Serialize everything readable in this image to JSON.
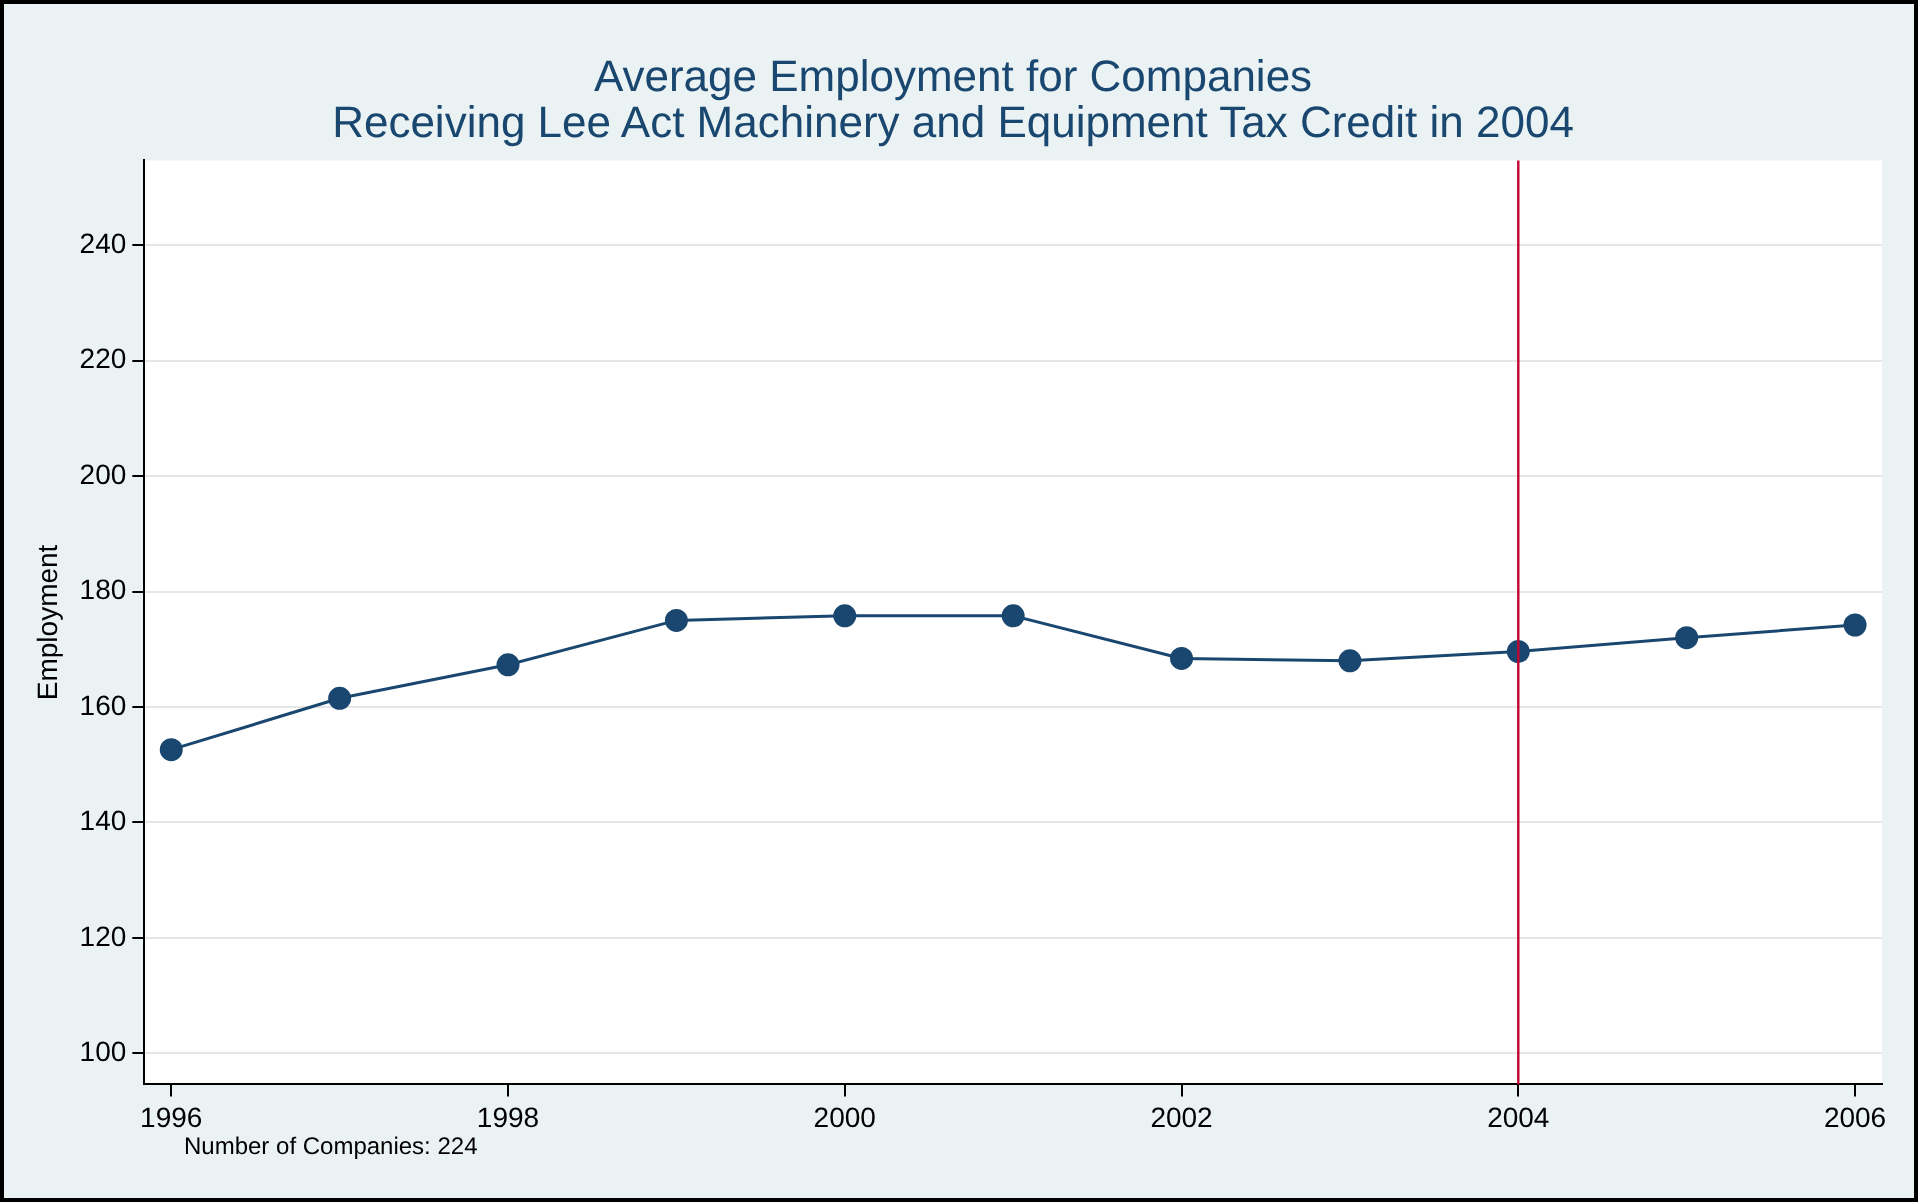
{
  "chart_data": {
    "type": "line",
    "title": "Average Employment for Companies\nReceiving Lee Act Machinery and Equipment Tax Credit in 2004",
    "ylabel": "Employment",
    "x": [
      1996,
      1997,
      1998,
      1999,
      2000,
      2001,
      2002,
      2003,
      2004,
      2005,
      2006
    ],
    "series": [
      {
        "color": "#1a476f",
        "values": [
          152.6,
          161.5,
          167.3,
          175,
          175.8,
          175.8,
          168.4,
          168,
          169.6,
          172,
          174.2
        ]
      }
    ],
    "xlim": [
      1995.84,
      2006.16
    ],
    "xticks": [
      1996,
      1998,
      2000,
      2002,
      2004,
      2006
    ],
    "ylim": [
      94.6,
      254.7
    ],
    "yticks": [
      100,
      120,
      140,
      160,
      180,
      200,
      220,
      240
    ],
    "grid": "y",
    "marker": "circle",
    "line_style": "solid",
    "legend": false,
    "ref_lines": [
      {
        "axis": "x",
        "value": 2004,
        "color": "#c10534"
      }
    ],
    "annotations": [
      "Number of Companies: 224"
    ]
  }
}
